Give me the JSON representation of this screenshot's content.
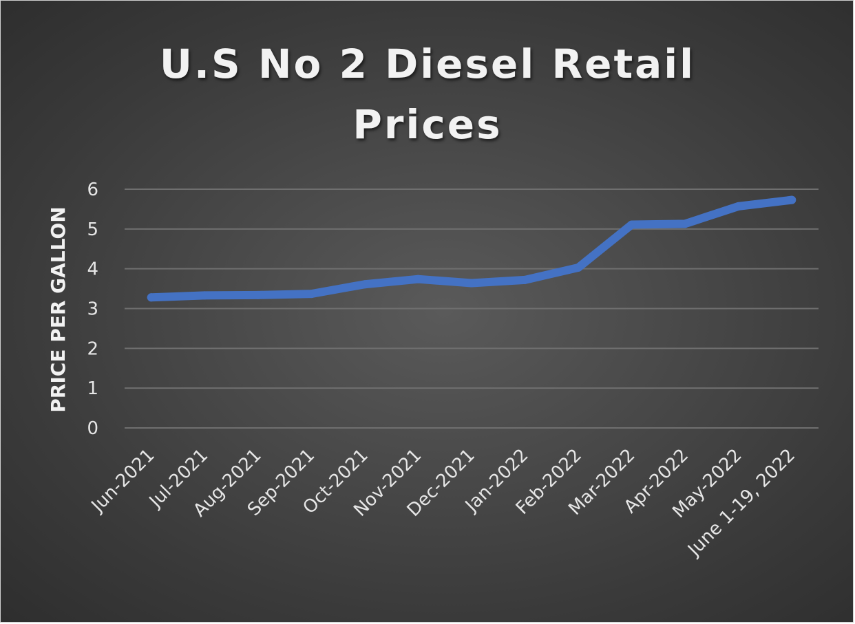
{
  "chart_data": {
    "type": "line",
    "title": "U.S No 2 Diesel Retail Prices",
    "xlabel": "",
    "ylabel": "PRICE PER GALLON",
    "categories": [
      "Jun-2021",
      "Jul-2021",
      "Aug-2021",
      "Sep-2021",
      "Oct-2021",
      "Nov-2021",
      "Dec-2021",
      "Jan-2022",
      "Feb-2022",
      "Mar-2022",
      "Apr-2022",
      "May-2022",
      "June 1-19, 2022"
    ],
    "series": [
      {
        "values": [
          3.28,
          3.33,
          3.34,
          3.37,
          3.61,
          3.74,
          3.64,
          3.72,
          4.03,
          5.11,
          5.13,
          5.57,
          5.73
        ],
        "color": "#4472c4"
      }
    ],
    "yticks": [
      "0",
      "1",
      "2",
      "3",
      "4",
      "5",
      "6"
    ],
    "ylim": [
      0,
      6
    ],
    "grid": true,
    "legend": "none"
  }
}
